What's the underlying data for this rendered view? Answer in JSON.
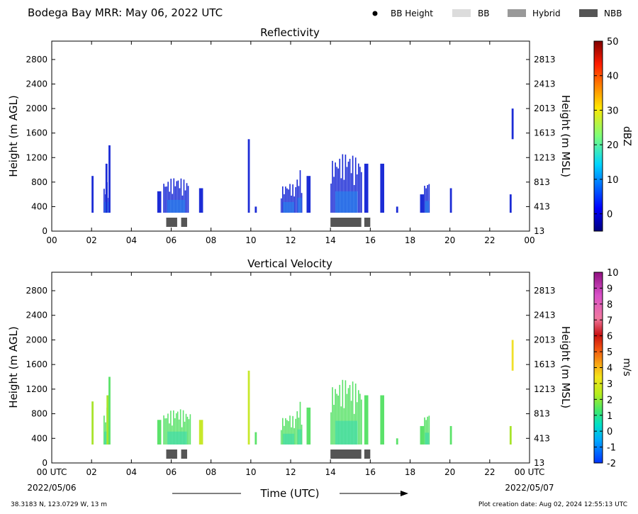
{
  "header": {
    "title": "Bodega Bay MRR:  May 06, 2022 UTC",
    "legend": [
      {
        "label": "BB Height",
        "kind": "dot",
        "color": "#000000"
      },
      {
        "label": "BB",
        "kind": "box",
        "color": "#dcdcdc"
      },
      {
        "label": "Hybrid",
        "kind": "box",
        "color": "#999999"
      },
      {
        "label": "NBB",
        "kind": "box",
        "color": "#555555"
      }
    ]
  },
  "footer": {
    "time_label": "Time (UTC)",
    "start_date": "2022/05/06",
    "end_date": "2022/05/07",
    "location": "38.3183 N, 123.0729 W, 13 m",
    "creation": "Plot creation date: Aug 02, 2024 12:55:13 UTC"
  },
  "chart_data": [
    {
      "type": "heatmap",
      "title": "Reflectivity",
      "ylabel": "Height (m AGL)",
      "ylabel_right": "Height (m MSL)",
      "ylim": [
        0,
        3100
      ],
      "xlim": [
        0,
        24
      ],
      "xticks": [
        "00",
        "02",
        "04",
        "06",
        "08",
        "10",
        "12",
        "14",
        "16",
        "18",
        "20",
        "22",
        "00"
      ],
      "yticks": [
        0,
        400,
        800,
        1200,
        1600,
        2000,
        2400,
        2800
      ],
      "yticks_right": [
        "13",
        "413",
        "813",
        "1213",
        "1613",
        "2013",
        "2413",
        "2813"
      ],
      "colorbar": {
        "label": "dBZ",
        "min": -5,
        "max": 50,
        "ticks": [
          "0",
          "10",
          "20",
          "30",
          "40",
          "50"
        ],
        "tick_values": [
          0,
          10,
          20,
          30,
          40,
          50
        ],
        "colormap": "jet"
      },
      "echo_color": "#1c2cd6",
      "echo_core_color": "#1e8cf0",
      "echoes": [
        {
          "t0": 2.0,
          "t1": 2.1,
          "top": 900
        },
        {
          "t0": 2.6,
          "t1": 2.9,
          "top": 800
        },
        {
          "t0": 2.7,
          "t1": 2.8,
          "top": 1100
        },
        {
          "t0": 2.85,
          "t1": 2.95,
          "top": 1400
        },
        {
          "t0": 5.3,
          "t1": 5.5,
          "top": 650
        },
        {
          "t0": 5.6,
          "t1": 6.9,
          "top": 900
        },
        {
          "t0": 7.4,
          "t1": 7.6,
          "top": 700
        },
        {
          "t0": 9.85,
          "t1": 9.95,
          "top": 1500
        },
        {
          "t0": 10.2,
          "t1": 10.3,
          "top": 400
        },
        {
          "t0": 11.5,
          "t1": 12.3,
          "top": 800
        },
        {
          "t0": 12.3,
          "t1": 12.6,
          "top": 1000
        },
        {
          "t0": 12.8,
          "t1": 13.0,
          "top": 900
        },
        {
          "t0": 14.0,
          "t1": 15.6,
          "top": 1300
        },
        {
          "t0": 15.7,
          "t1": 15.9,
          "top": 1100
        },
        {
          "t0": 16.5,
          "t1": 16.7,
          "top": 1100
        },
        {
          "t0": 17.3,
          "t1": 17.4,
          "top": 400
        },
        {
          "t0": 18.5,
          "t1": 18.7,
          "top": 600
        },
        {
          "t0": 18.7,
          "t1": 19.0,
          "top": 850
        },
        {
          "t0": 20.0,
          "t1": 20.1,
          "top": 700
        },
        {
          "t0": 23.0,
          "t1": 23.1,
          "top": 600
        },
        {
          "t0": 23.1,
          "t1": 23.2,
          "bottom": 1500,
          "top": 2000
        }
      ],
      "bb_markers": [
        {
          "t0": 5.75,
          "t1": 6.3,
          "type": "NBB"
        },
        {
          "t0": 6.5,
          "t1": 6.8,
          "type": "NBB"
        },
        {
          "t0": 14.0,
          "t1": 15.55,
          "type": "NBB"
        },
        {
          "t0": 15.7,
          "t1": 16.0,
          "type": "NBB"
        }
      ]
    },
    {
      "type": "heatmap",
      "title": "Vertical Velocity",
      "ylabel": "Height (m AGL)",
      "ylabel_right": "Height (m MSL)",
      "ylim": [
        0,
        3100
      ],
      "xlim": [
        0,
        24
      ],
      "xticks": [
        "00 UTC",
        "02",
        "04",
        "06",
        "08",
        "10",
        "12",
        "14",
        "16",
        "18",
        "20",
        "22",
        "00 UTC"
      ],
      "yticks": [
        0,
        400,
        800,
        1200,
        1600,
        2000,
        2400,
        2800
      ],
      "yticks_right": [
        "13",
        "413",
        "813",
        "1213",
        "1613",
        "2013",
        "2413",
        "2813"
      ],
      "colorbar": {
        "label": "m/s",
        "min": -2,
        "max": 10,
        "ticks": [
          "-2",
          "-1",
          "0",
          "1",
          "2",
          "3",
          "4",
          "5",
          "6",
          "7",
          "8",
          "9",
          "10"
        ],
        "tick_values": [
          -2,
          -1,
          0,
          1,
          2,
          3,
          4,
          5,
          6,
          7,
          8,
          9,
          10
        ],
        "colormap": "velocity"
      },
      "echo_color": "#5be26a",
      "echo_core_color": "#2fd9b0",
      "echoes": [
        {
          "t0": 2.0,
          "t1": 2.1,
          "top": 1000,
          "color": "#a8e42c"
        },
        {
          "t0": 2.6,
          "t1": 2.9,
          "top": 900
        },
        {
          "t0": 2.75,
          "t1": 2.85,
          "top": 1100,
          "color": "#a8e42c"
        },
        {
          "t0": 2.85,
          "t1": 2.95,
          "top": 1400
        },
        {
          "t0": 5.3,
          "t1": 5.5,
          "top": 700
        },
        {
          "t0": 5.6,
          "t1": 7.0,
          "top": 900
        },
        {
          "t0": 7.4,
          "t1": 7.6,
          "top": 700,
          "color": "#c8e82a"
        },
        {
          "t0": 9.85,
          "t1": 9.95,
          "top": 1500,
          "color": "#c8e82a"
        },
        {
          "t0": 10.2,
          "t1": 10.3,
          "top": 500
        },
        {
          "t0": 11.5,
          "t1": 12.3,
          "top": 800
        },
        {
          "t0": 12.3,
          "t1": 12.6,
          "top": 1000
        },
        {
          "t0": 12.8,
          "t1": 13.0,
          "top": 900
        },
        {
          "t0": 14.0,
          "t1": 15.6,
          "top": 1400
        },
        {
          "t0": 15.7,
          "t1": 15.9,
          "top": 1100
        },
        {
          "t0": 16.5,
          "t1": 16.7,
          "top": 1100
        },
        {
          "t0": 17.3,
          "t1": 17.4,
          "top": 400
        },
        {
          "t0": 18.5,
          "t1": 18.7,
          "top": 600
        },
        {
          "t0": 18.7,
          "t1": 19.0,
          "top": 850
        },
        {
          "t0": 20.0,
          "t1": 20.1,
          "top": 600
        },
        {
          "t0": 23.0,
          "t1": 23.1,
          "top": 600,
          "color": "#a8e42c"
        },
        {
          "t0": 23.1,
          "t1": 23.2,
          "bottom": 1500,
          "top": 2000,
          "color": "#f0e02a"
        }
      ],
      "bb_markers": [
        {
          "t0": 5.75,
          "t1": 6.3,
          "type": "NBB"
        },
        {
          "t0": 6.5,
          "t1": 6.8,
          "type": "NBB"
        },
        {
          "t0": 14.0,
          "t1": 15.55,
          "type": "NBB"
        },
        {
          "t0": 15.7,
          "t1": 16.0,
          "type": "NBB"
        }
      ]
    }
  ]
}
